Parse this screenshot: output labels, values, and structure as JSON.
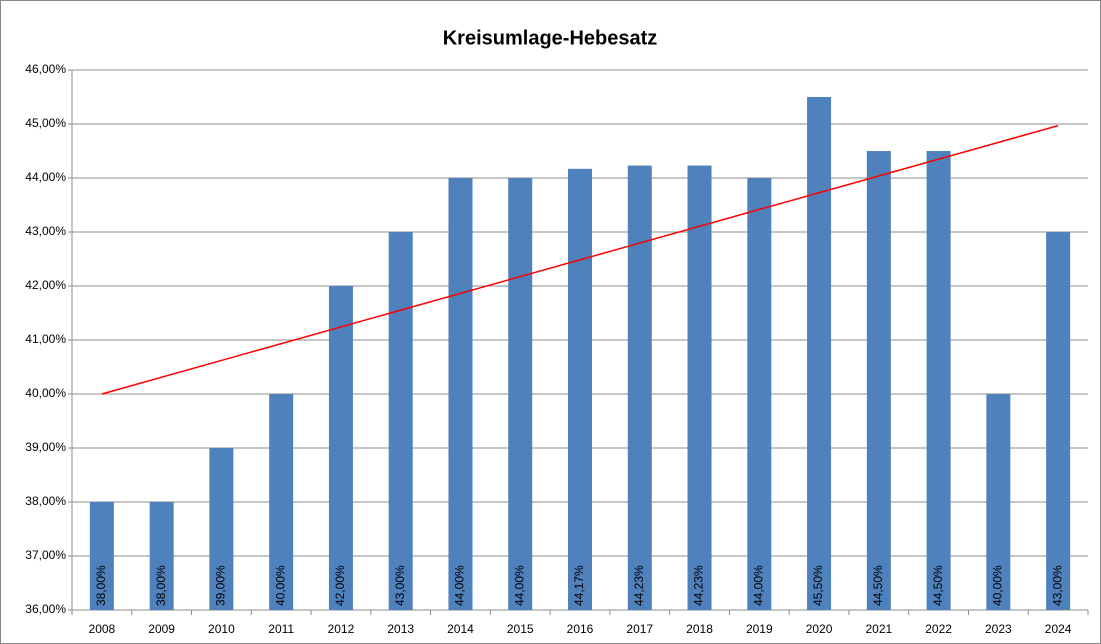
{
  "chart_data": {
    "type": "bar",
    "title": "Kreisumlage-Hebesatz",
    "categories": [
      "2008",
      "2009",
      "2010",
      "2011",
      "2012",
      "2013",
      "2014",
      "2015",
      "2016",
      "2017",
      "2018",
      "2019",
      "2020",
      "2021",
      "2022",
      "2023",
      "2024"
    ],
    "values": [
      38,
      38,
      39,
      40,
      42,
      43,
      44,
      44,
      44.17,
      44.23,
      44.23,
      44,
      45.5,
      44.5,
      44.5,
      40,
      43
    ],
    "value_labels": [
      "38,00%",
      "38,00%",
      "39,00%",
      "40,00%",
      "42,00%",
      "43,00%",
      "44,00%",
      "44,00%",
      "44,17%",
      "44,23%",
      "44,23%",
      "44,00%",
      "45,50%",
      "44,50%",
      "44,50%",
      "40,00%",
      "43,00%"
    ],
    "color": "#4f81bd",
    "trendline": {
      "categories": [
        "2008",
        "2024"
      ],
      "values": [
        40.0,
        44.97
      ],
      "color": "#ff0000"
    },
    "ylim": [
      36,
      46
    ],
    "yticks": [
      {
        "value": 36,
        "label": "36,00%"
      },
      {
        "value": 37,
        "label": "37,00%"
      },
      {
        "value": 38,
        "label": "38,00%"
      },
      {
        "value": 39,
        "label": "39,00%"
      },
      {
        "value": 40,
        "label": "40,00%"
      },
      {
        "value": 41,
        "label": "41,00%"
      },
      {
        "value": 42,
        "label": "42,00%"
      },
      {
        "value": 43,
        "label": "43,00%"
      },
      {
        "value": 44,
        "label": "44,00%"
      },
      {
        "value": 45,
        "label": "45,00%"
      },
      {
        "value": 46,
        "label": "46,00%"
      }
    ],
    "grid": true
  }
}
